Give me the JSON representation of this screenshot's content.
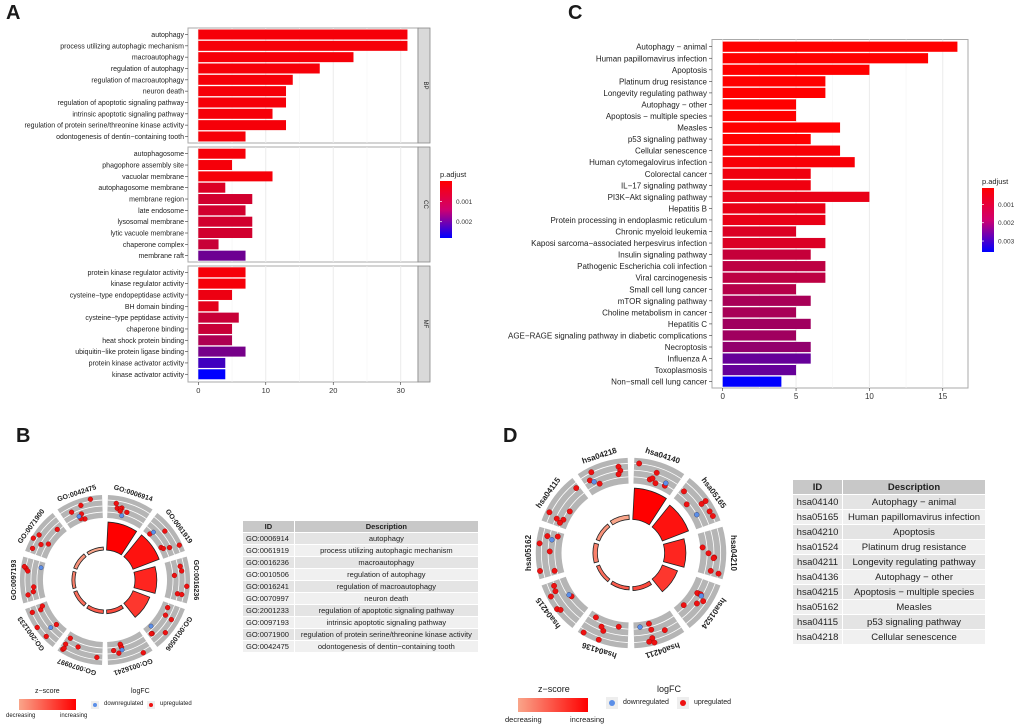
{
  "panels": {
    "a": "A",
    "b": "B",
    "c": "C",
    "d": "D"
  },
  "chart_data": [
    {
      "id": "A",
      "type": "bar",
      "orientation": "horizontal",
      "facets": [
        {
          "name": "BP",
          "categories": [
            "autophagy",
            "process utilizing autophagic mechanism",
            "macroautophagy",
            "regulation of autophagy",
            "regulation of macroautophagy",
            "neuron death",
            "regulation of apoptotic signaling pathway",
            "intrinsic apoptotic signaling pathway",
            "regulation of protein serine/threonine kinase activity",
            "odontogenesis of dentin−containing tooth"
          ],
          "values": [
            31,
            31,
            23,
            18,
            14,
            13,
            13,
            11,
            13,
            7
          ],
          "p_adjust": [
            0.0001,
            0.0001,
            0.0001,
            0.0001,
            0.0001,
            0.0001,
            0.0001,
            0.0001,
            0.0001,
            0.0001
          ]
        },
        {
          "name": "CC",
          "categories": [
            "autophagosome",
            "phagophore assembly site",
            "vacuolar membrane",
            "autophagosome membrane",
            "membrane region",
            "late endosome",
            "lysosomal membrane",
            "lytic vacuole membrane",
            "chaperone complex",
            "membrane raft"
          ],
          "values": [
            7,
            5,
            11,
            4,
            8,
            7,
            8,
            8,
            3,
            7
          ],
          "p_adjust": [
            0.0001,
            0.0001,
            0.0001,
            0.0004,
            0.0005,
            0.0005,
            0.0005,
            0.0005,
            0.0006,
            0.0016
          ]
        },
        {
          "name": "MF",
          "categories": [
            "protein kinase regulator activity",
            "kinase regulator activity",
            "cysteine−type endopeptidase activity",
            "BH domain binding",
            "cysteine−type peptidase activity",
            "chaperone binding",
            "heat shock protein binding",
            "ubiquitin−like protein ligase binding",
            "protein kinase activator activity",
            "kinase activator activity"
          ],
          "values": [
            7,
            7,
            5,
            3,
            6,
            5,
            5,
            7,
            4,
            4
          ],
          "p_adjust": [
            0.0001,
            0.0001,
            0.0002,
            0.0003,
            0.0006,
            0.0006,
            0.0009,
            0.0015,
            0.0021,
            0.0028
          ]
        }
      ],
      "xlim": [
        0,
        32.5
      ],
      "xticks": [
        0,
        10,
        20,
        30
      ],
      "color_legend": {
        "title": "p.adjust",
        "ticks": [
          "0.001",
          "0.002"
        ],
        "tick_values": [
          0.001,
          0.002
        ],
        "range": [
          0,
          0.0028
        ],
        "low_color": "#FF0000",
        "high_color": "#0000FF"
      },
      "grid": true
    },
    {
      "id": "C",
      "type": "bar",
      "orientation": "horizontal",
      "categories": [
        "Autophagy − animal",
        "Human papillomavirus infection",
        "Apoptosis",
        "Platinum drug resistance",
        "Longevity regulating pathway",
        "Autophagy − other",
        "Apoptosis − multiple species",
        "Measles",
        "p53 signaling pathway",
        "Cellular senescence",
        "Human cytomegalovirus infection",
        "Colorectal cancer",
        "IL−17 signaling pathway",
        "PI3K−Akt signaling pathway",
        "Hepatitis B",
        "Protein processing in endoplasmic reticulum",
        "Chronic myeloid leukemia",
        "Kaposi sarcoma−associated herpesvirus infection",
        "Insulin signaling pathway",
        "Pathogenic Escherichia coli infection",
        "Viral carcinogenesis",
        "Small cell lung cancer",
        "mTOR signaling pathway",
        "Choline metabolism in cancer",
        "Hepatitis C",
        "AGE−RAGE signaling pathway in diabetic complications",
        "Necroptosis",
        "Influenza A",
        "Toxoplasmosis",
        "Non−small cell lung cancer"
      ],
      "values": [
        16,
        14,
        10,
        7,
        7,
        5,
        5,
        8,
        6,
        8,
        9,
        6,
        6,
        10,
        7,
        7,
        5,
        7,
        6,
        7,
        7,
        5,
        6,
        5,
        6,
        5,
        6,
        6,
        5,
        4
      ],
      "p_adjust": [
        0.0001,
        0.0001,
        0.0001,
        0.0001,
        0.0001,
        0.0001,
        0.0001,
        0.0001,
        0.0001,
        0.0002,
        0.0002,
        0.0003,
        0.0003,
        0.0004,
        0.0004,
        0.0004,
        0.0006,
        0.0006,
        0.0009,
        0.001,
        0.001,
        0.0011,
        0.0013,
        0.0013,
        0.0014,
        0.0014,
        0.0016,
        0.0022,
        0.0022,
        0.0036
      ],
      "xlim": [
        -0.8,
        17.6
      ],
      "xticks": [
        0,
        5,
        10,
        15
      ],
      "color_legend": {
        "title": "p.adjust",
        "ticks": [
          "0.001",
          "0.002",
          "0.003"
        ],
        "tick_values": [
          0.001,
          0.002,
          0.003
        ],
        "range": [
          0.0001,
          0.0036
        ],
        "low_color": "#FF0000",
        "high_color": "#0000FF"
      },
      "grid": true
    },
    {
      "id": "B",
      "type": "circle",
      "terms": [
        "GO:0006914",
        "GO:0061919",
        "GO:0016236",
        "GO:0010506",
        "GO:0016241",
        "GO:0070997",
        "GO:2001233",
        "GO:0097193",
        "GO:0071900",
        "GO:0042475"
      ],
      "counts": [
        31,
        31,
        23,
        18,
        14,
        13,
        13,
        11,
        13,
        7
      ]
    },
    {
      "id": "D",
      "type": "circle",
      "terms": [
        "hsa04140",
        "hsa05165",
        "hsa04210",
        "hsa01524",
        "hsa04211",
        "hsa04136",
        "hsa04215",
        "hsa05162",
        "hsa04115",
        "hsa04218"
      ],
      "counts": [
        16,
        14,
        10,
        7,
        7,
        5,
        5,
        8,
        6,
        8
      ]
    }
  ],
  "tableB": {
    "headers": [
      "ID",
      "Description"
    ],
    "rows": [
      [
        "GO:0006914",
        "autophagy"
      ],
      [
        "GO:0061919",
        "process utilizing autophagic mechanism"
      ],
      [
        "GO:0016236",
        "macroautophagy"
      ],
      [
        "GO:0010506",
        "regulation of autophagy"
      ],
      [
        "GO:0016241",
        "regulation of macroautophagy"
      ],
      [
        "GO:0070997",
        "neuron death"
      ],
      [
        "GO:2001233",
        "regulation of apoptotic signaling pathway"
      ],
      [
        "GO:0097193",
        "intrinsic apoptotic signaling pathway"
      ],
      [
        "GO:0071900",
        "regulation of protein serine/threonine kinase activity"
      ],
      [
        "GO:0042475",
        "odontogenesis of dentin−containing tooth"
      ]
    ]
  },
  "tableD": {
    "headers": [
      "ID",
      "Description"
    ],
    "rows": [
      [
        "hsa04140",
        "Autophagy − animal"
      ],
      [
        "hsa05165",
        "Human papillomavirus infection"
      ],
      [
        "hsa04210",
        "Apoptosis"
      ],
      [
        "hsa01524",
        "Platinum drug resistance"
      ],
      [
        "hsa04211",
        "Longevity regulating pathway"
      ],
      [
        "hsa04136",
        "Autophagy − other"
      ],
      [
        "hsa04215",
        "Apoptosis − multiple species"
      ],
      [
        "hsa05162",
        "Measles"
      ],
      [
        "hsa04115",
        "p53 signaling pathway"
      ],
      [
        "hsa04218",
        "Cellular senescence"
      ]
    ]
  },
  "circle_legend": {
    "zscore_title": "z−score",
    "decreasing": "decreasing",
    "increasing": "increasing",
    "logfc_title": "logFC",
    "down": "downregulated",
    "up": "upregulated",
    "down_color": "#5B8FE8",
    "up_color": "#EE1111"
  }
}
